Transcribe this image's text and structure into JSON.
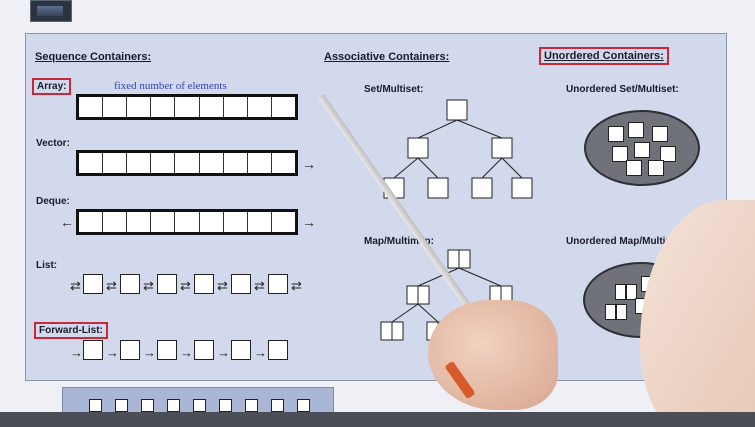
{
  "slide": {
    "sequence": {
      "heading": "Sequence Containers:",
      "array_label": "Array:",
      "array_note": "fixed number of elements",
      "vector_label": "Vector:",
      "deque_label": "Deque:",
      "list_label": "List:",
      "forward_list_label": "Forward-List:",
      "arrow_right": "→",
      "arrow_left": "←",
      "link_double": "⇄",
      "link_single": "→"
    },
    "associative": {
      "heading": "Associative Containers:",
      "set_label": "Set/Multiset:",
      "map_label": "Map/Multimap:"
    },
    "unordered": {
      "heading": "Unordered Containers:",
      "set_label": "Unordered Set/Multiset:",
      "map_label": "Unordered Map/Multimap:"
    }
  },
  "colors": {
    "highlight_box": "#c8283a",
    "note_text": "#3344bb",
    "slide_bg": "#d3d9ec"
  }
}
